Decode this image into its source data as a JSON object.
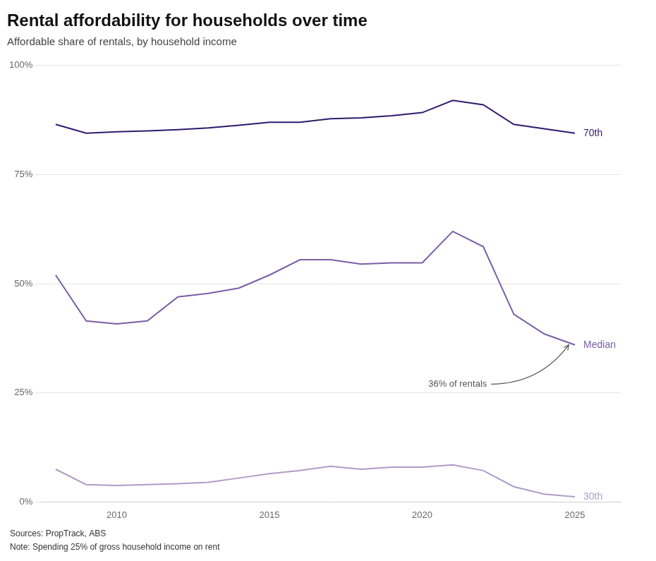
{
  "chart_data": {
    "type": "line",
    "title": "Rental affordability for households over time",
    "subtitle": "Affordable share of rentals, by household income",
    "footnotes": [
      "Sources: PropTrack, ABS",
      "Note: Spending 25% of gross household income on rent"
    ],
    "x": [
      2008,
      2009,
      2010,
      2011,
      2012,
      2013,
      2014,
      2015,
      2016,
      2017,
      2018,
      2019,
      2020,
      2021,
      2022,
      2023,
      2024,
      2025
    ],
    "series": [
      {
        "name": "70th",
        "color": "#2d1b6e",
        "values": [
          0.865,
          0.845,
          0.848,
          0.85,
          0.853,
          0.857,
          0.863,
          0.87,
          0.87,
          0.878,
          0.88,
          0.885,
          0.892,
          0.92,
          0.91,
          0.865,
          0.855,
          0.845
        ]
      },
      {
        "name": "Median",
        "color": "#7b5ea7",
        "values": [
          0.52,
          0.415,
          0.408,
          0.415,
          0.47,
          0.478,
          0.49,
          0.52,
          0.555,
          0.555,
          0.545,
          0.548,
          0.548,
          0.62,
          0.585,
          0.43,
          0.385,
          0.36
        ]
      },
      {
        "name": "30th",
        "color": "#b09cc8",
        "values": [
          0.075,
          0.04,
          0.038,
          0.04,
          0.042,
          0.045,
          0.055,
          0.065,
          0.072,
          0.082,
          0.075,
          0.08,
          0.08,
          0.085,
          0.072,
          0.035,
          0.018,
          0.012
        ]
      }
    ],
    "annotations": [
      {
        "text": "36% of rentals",
        "x": 2020.2,
        "y": 0.27,
        "arrow_x": 2024.8,
        "arrow_y": 0.36
      }
    ],
    "xlim": [
      2007.5,
      2026.5
    ],
    "xticks": [
      2010,
      2015,
      2020,
      2025
    ],
    "ylim": [
      0,
      1.0
    ],
    "yticks": [
      {
        "value": 0,
        "label": "0%"
      },
      {
        "value": 0.25,
        "label": "25%"
      },
      {
        "value": 0.5,
        "label": "50%"
      },
      {
        "value": 0.75,
        "label": "75%"
      },
      {
        "value": 1.0,
        "label": "100%"
      }
    ],
    "grid": true
  }
}
